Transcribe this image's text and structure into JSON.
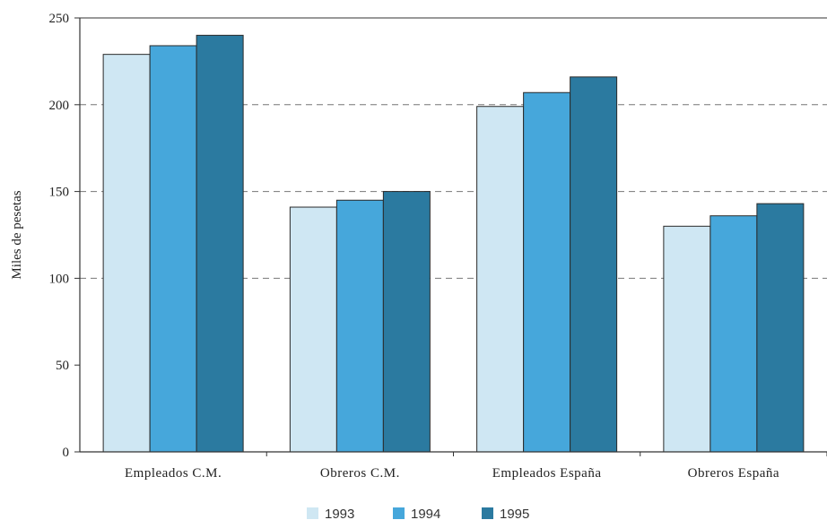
{
  "chart_data": {
    "type": "bar",
    "title": "",
    "xlabel": "",
    "ylabel": "Miles de pesetas",
    "ylim": [
      0,
      250
    ],
    "yticks": [
      "0",
      "50",
      "100",
      "150",
      "200",
      "250"
    ],
    "grid": "horizontal dashed at 100, 150, 200",
    "legend_position": "bottom-center",
    "categories": [
      "Empleados C.M.",
      "Obreros C.M.",
      "Empleados España",
      "Obreros España"
    ],
    "series": [
      {
        "name": "1993",
        "color": "#cfe7f3",
        "values": [
          229,
          141,
          199,
          130
        ]
      },
      {
        "name": "1994",
        "color": "#46a7db",
        "values": [
          234,
          145,
          207,
          136
        ]
      },
      {
        "name": "1995",
        "color": "#2b7aa0",
        "values": [
          240,
          150,
          216,
          143
        ]
      }
    ]
  }
}
